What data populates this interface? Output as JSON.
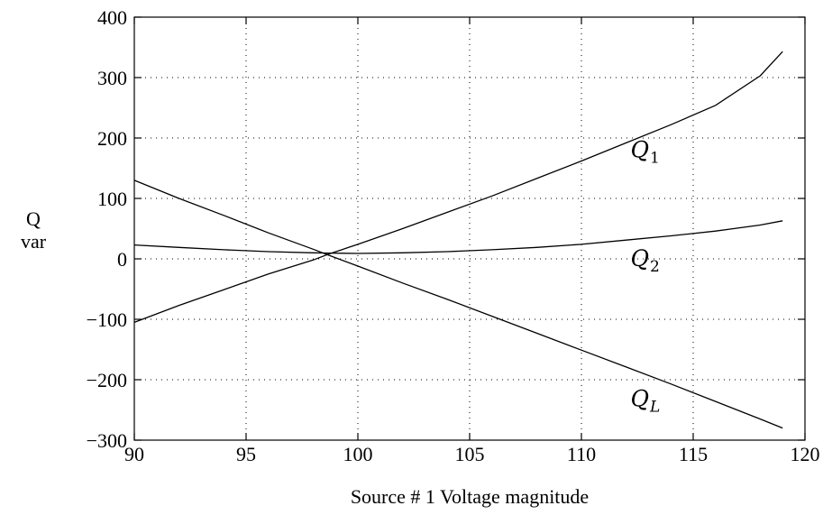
{
  "chart_data": {
    "type": "line",
    "xlabel": "Source # 1 Voltage magnitude",
    "ylabel": "Q",
    "ylabel_unit": "var",
    "xlim": [
      90,
      120
    ],
    "ylim": [
      -300,
      400
    ],
    "xticks": [
      90,
      95,
      100,
      105,
      110,
      115,
      120
    ],
    "yticks": [
      -300,
      -200,
      -100,
      0,
      100,
      200,
      300,
      400
    ],
    "ytick_labels": [
      "−300",
      "−200",
      "−100",
      "0",
      "100",
      "200",
      "300",
      "400"
    ],
    "grid": true,
    "x": [
      90,
      92,
      94,
      96,
      98,
      98.7,
      100,
      102,
      104,
      106,
      108,
      110,
      112,
      114,
      116,
      118,
      119
    ],
    "series": [
      {
        "label": "Q",
        "label_sub": "1",
        "sub_italic": false,
        "label_at": [
          112.2,
          180
        ],
        "values": [
          -105,
          -77,
          -51,
          -25,
          -2,
          8,
          24,
          50,
          77,
          104,
          133,
          162,
          192,
          222,
          254,
          303,
          343
        ]
      },
      {
        "label": "Q",
        "label_sub": "2",
        "sub_italic": false,
        "label_at": [
          112.2,
          0
        ],
        "values": [
          23,
          19,
          15,
          12,
          10,
          9.5,
          9,
          10,
          12,
          15,
          19,
          24,
          31,
          38,
          46,
          56,
          63
        ]
      },
      {
        "label": "Q",
        "label_sub": "L",
        "sub_italic": true,
        "label_at": [
          112.2,
          -232
        ],
        "values": [
          130,
          100,
          72,
          43,
          16,
          6,
          -12,
          -40,
          -67,
          -95,
          -123,
          -151,
          -179,
          -207,
          -236,
          -265,
          -280
        ]
      }
    ]
  }
}
